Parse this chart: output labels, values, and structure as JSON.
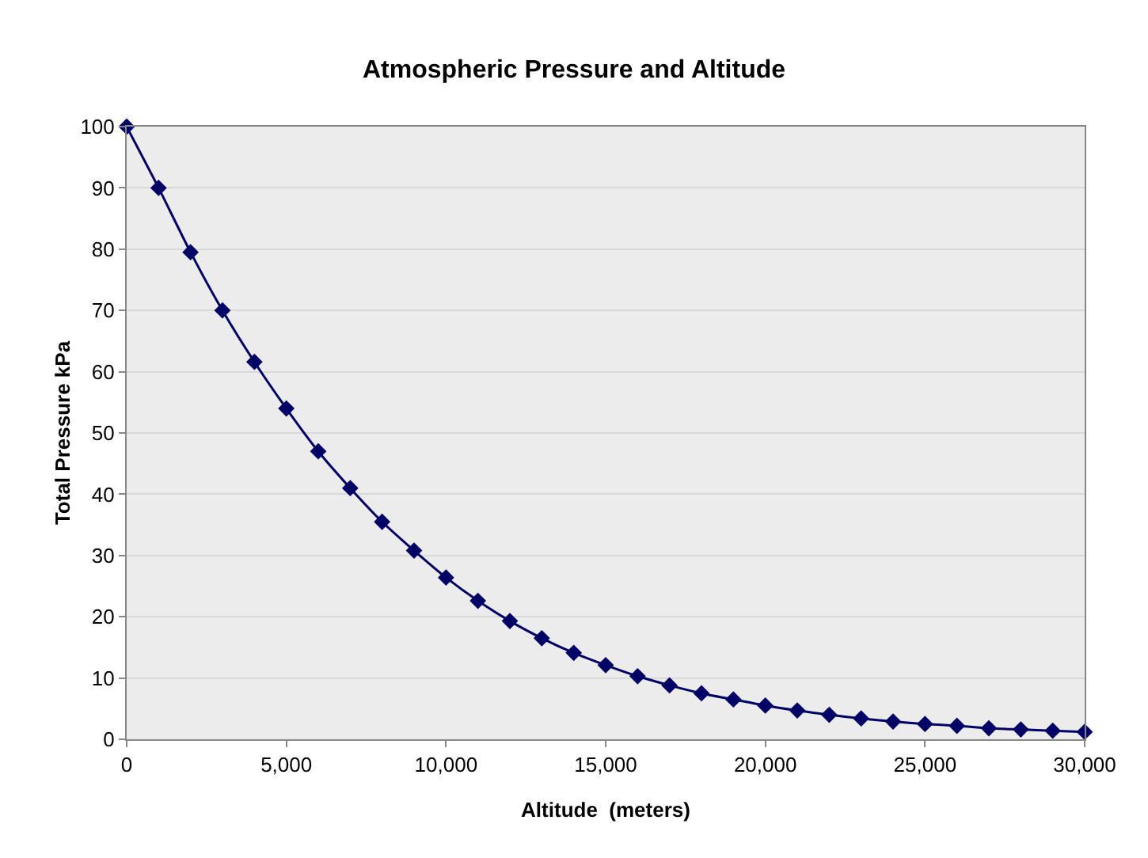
{
  "chart_data": {
    "type": "line",
    "title": "Atmospheric Pressure and Altitude",
    "xlabel": "Altitude  (meters)",
    "ylabel": "Total Pressure kPa",
    "x": [
      0,
      1000,
      2000,
      3000,
      4000,
      5000,
      6000,
      7000,
      8000,
      9000,
      10000,
      11000,
      12000,
      13000,
      14000,
      15000,
      16000,
      17000,
      18000,
      19000,
      20000,
      21000,
      22000,
      23000,
      24000,
      25000,
      26000,
      27000,
      28000,
      29000,
      30000
    ],
    "series": [
      {
        "color": "#000066",
        "values": [
          100,
          90,
          79.5,
          70,
          61.6,
          54,
          47,
          41,
          35.5,
          30.8,
          26.4,
          22.6,
          19.3,
          16.5,
          14.1,
          12.1,
          10.3,
          8.8,
          7.5,
          6.5,
          5.5,
          4.7,
          4,
          3.4,
          2.9,
          2.5,
          2.2,
          1.8,
          1.6,
          1.4,
          1.2
        ]
      }
    ],
    "xlim": [
      0,
      30000
    ],
    "xticks": [
      {
        "value": 0,
        "label": "0"
      },
      {
        "value": 5000,
        "label": "5,000"
      },
      {
        "value": 10000,
        "label": "10,000"
      },
      {
        "value": 15000,
        "label": "15,000"
      },
      {
        "value": 20000,
        "label": "20,000"
      },
      {
        "value": 25000,
        "label": "25,000"
      },
      {
        "value": 30000,
        "label": "30,000"
      }
    ],
    "ylim": [
      0,
      100
    ],
    "yticks": [
      0,
      10,
      20,
      30,
      40,
      50,
      60,
      70,
      80,
      90,
      100
    ],
    "grid": "y",
    "marker": "diamond",
    "line_style": "solid"
  }
}
